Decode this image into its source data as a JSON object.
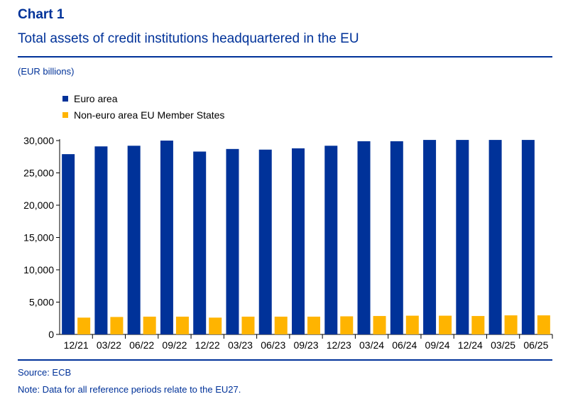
{
  "header": {
    "chart_label": "Chart 1",
    "title": "Total assets of credit institutions headquartered in the EU",
    "unit": "(EUR billions)"
  },
  "footer": {
    "source": "Source: ECB",
    "note": "Note: Data for all reference periods relate to the EU27."
  },
  "colors": {
    "euro_area": "#003299",
    "non_euro": "#FFB400",
    "title": "#003299"
  },
  "chart_data": {
    "type": "bar",
    "title": "Total assets of credit institutions headquartered in the EU",
    "ylabel": "(EUR billions)",
    "xlabel": "",
    "ylim": [
      0,
      30000
    ],
    "yticks": [
      0,
      5000,
      10000,
      15000,
      20000,
      25000,
      30000
    ],
    "ytick_labels": [
      "0",
      "5,000",
      "10,000",
      "15,000",
      "20,000",
      "25,000",
      "30,000"
    ],
    "grid": false,
    "legend_position": "top-left",
    "categories": [
      "12/21",
      "03/22",
      "06/22",
      "09/22",
      "12/22",
      "03/23",
      "06/23",
      "09/23",
      "12/23",
      "03/24",
      "06/24",
      "09/24",
      "12/24",
      "03/25",
      "06/25"
    ],
    "series": [
      {
        "name": "Euro area",
        "color": "#003299",
        "values": [
          27900,
          29100,
          29200,
          30000,
          28300,
          28700,
          28600,
          28800,
          29200,
          29900,
          29900,
          30100,
          30100,
          30100,
          30100
        ]
      },
      {
        "name": "Non-euro area EU Member States",
        "color": "#FFB400",
        "values": [
          2600,
          2700,
          2750,
          2750,
          2600,
          2750,
          2750,
          2750,
          2800,
          2850,
          2900,
          2900,
          2850,
          2950,
          2950
        ]
      }
    ]
  }
}
